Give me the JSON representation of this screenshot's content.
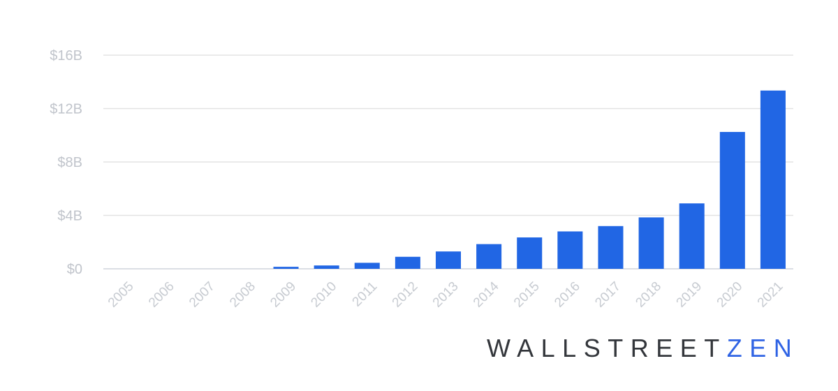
{
  "colors": {
    "bar": "#2166e4",
    "brand_dark": "#33363b",
    "brand_accent": "#2f63e4"
  },
  "brand": {
    "part1": "WALLSTREET",
    "part2": "ZEN"
  },
  "chart_data": {
    "type": "bar",
    "categories": [
      "2005",
      "2006",
      "2007",
      "2008",
      "2009",
      "2010",
      "2011",
      "2012",
      "2013",
      "2014",
      "2015",
      "2016",
      "2017",
      "2018",
      "2019",
      "2020",
      "2021"
    ],
    "values": [
      0,
      0,
      0,
      0,
      0.15,
      0.25,
      0.45,
      0.9,
      1.3,
      1.85,
      2.35,
      2.8,
      3.2,
      3.85,
      4.9,
      10.25,
      13.35
    ],
    "unit": "B",
    "title": "",
    "xlabel": "",
    "ylabel": "",
    "ylim": [
      0,
      16
    ],
    "yticks": [
      0,
      4,
      8,
      12,
      16
    ],
    "ytick_labels": [
      "$0",
      "$4B",
      "$8B",
      "$12B",
      "$16B"
    ],
    "grid": true,
    "legend": "none",
    "xtick_rotation": -45
  }
}
